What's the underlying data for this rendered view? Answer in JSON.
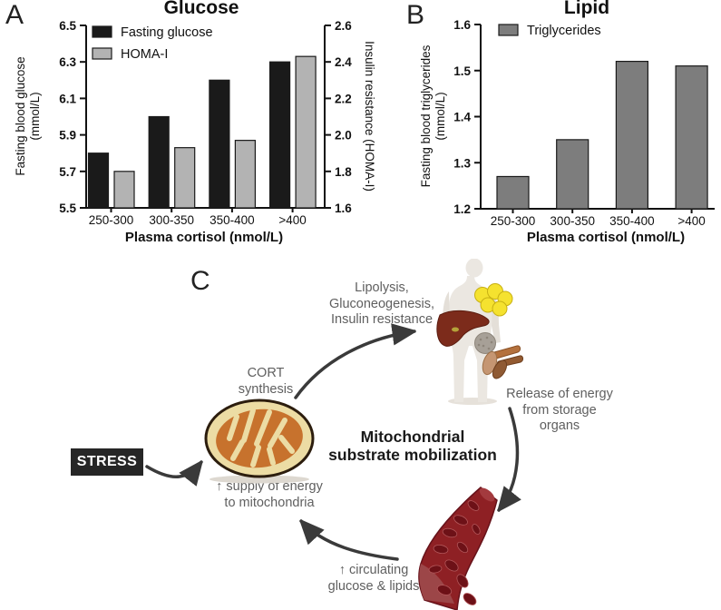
{
  "figure": {
    "panel_a_label": "A",
    "panel_b_label": "B",
    "panel_c_label": "C"
  },
  "chart_data": [
    {
      "type": "bar",
      "panel": "A",
      "title": "Glucose",
      "categories": [
        "250-300",
        "300-350",
        "350-400",
        ">400"
      ],
      "xlabel": "Plasma cortisol (nmol/L)",
      "series": [
        {
          "name": "Fasting glucose",
          "axis": "left",
          "color": "#1a1a1a",
          "values": [
            5.8,
            6.0,
            6.2,
            6.3
          ]
        },
        {
          "name": "HOMA-I",
          "axis": "right",
          "color": "#b3b3b3",
          "values": [
            1.8,
            1.93,
            1.97,
            2.43
          ]
        }
      ],
      "left_axis": {
        "label": "Fasting blood glucose\n(mmol/L)",
        "ticks": [
          5.5,
          5.7,
          5.9,
          6.1,
          6.3,
          6.5
        ],
        "range": [
          5.5,
          6.5
        ]
      },
      "right_axis": {
        "label": "Insulin resistance (HOMA-I)",
        "ticks": [
          1.6,
          1.8,
          2.0,
          2.2,
          2.4,
          2.6
        ],
        "range": [
          1.6,
          2.6
        ]
      },
      "legend_position": "top-left",
      "grid": false
    },
    {
      "type": "bar",
      "panel": "B",
      "title": "Lipid",
      "categories": [
        "250-300",
        "300-350",
        "350-400",
        ">400"
      ],
      "xlabel": "Plasma cortisol (nmol/L)",
      "series": [
        {
          "name": "Triglycerides",
          "axis": "left",
          "color": "#7d7d7d",
          "values": [
            1.27,
            1.35,
            1.52,
            1.51
          ]
        }
      ],
      "left_axis": {
        "label": "Fasting blood triglycerides\n(mmol/L)",
        "ticks": [
          1.2,
          1.3,
          1.4,
          1.5,
          1.6
        ],
        "range": [
          1.2,
          1.6
        ]
      },
      "legend_position": "top-left",
      "grid": false
    }
  ],
  "diagram": {
    "title": "Mitochondrial\nsubstrate mobilization",
    "stress": "STRESS",
    "cort": "CORT\nsynthesis",
    "lipolysis": "Lipolysis,\nGluconeogenesis,\nInsulin resistance",
    "release": "Release of energy\nfrom storage\norgans",
    "supply": "↑ supply of energy\nto mitochondria",
    "circulating": "↑ circulating\nglucose & lipids",
    "icons": {
      "mitochondrion": "mitochondrion-illustration",
      "body": "human-body-with-organs-illustration",
      "vessel": "blood-vessel-illustration"
    },
    "colors": {
      "stress_bg": "#262626",
      "note_text": "#5f5f5f",
      "arrow": "#3a3a3a",
      "mito_outer": "#ecdca4",
      "mito_inner": "#c7722d",
      "fat_yellow": "#f5e22f",
      "liver_red": "#7c2b1b",
      "vessel_red": "#8e2024"
    }
  }
}
